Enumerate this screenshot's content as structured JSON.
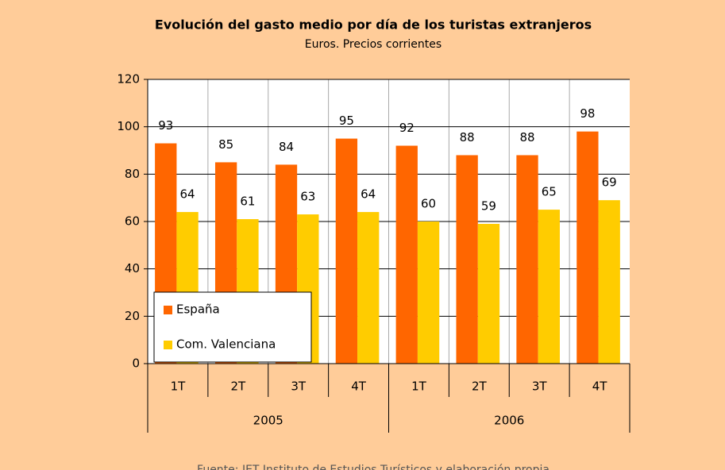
{
  "chart_data": {
    "type": "bar",
    "title": "Evolución del gasto medio por día de los turistas extranjeros",
    "subtitle": "Euros. Precios corrientes",
    "categories": [
      "1T",
      "2T",
      "3T",
      "4T",
      "1T",
      "2T",
      "3T",
      "4T"
    ],
    "group_labels": [
      "2005",
      "2006"
    ],
    "series": [
      {
        "name": "España",
        "color": "#ff6600",
        "values": [
          93,
          85,
          84,
          95,
          92,
          88,
          88,
          98
        ]
      },
      {
        "name": "Com. Valenciana",
        "color": "#ffcc00",
        "values": [
          64,
          61,
          63,
          64,
          60,
          59,
          65,
          69
        ]
      }
    ],
    "ylim": [
      0,
      120
    ],
    "yticks": [
      0,
      20,
      40,
      60,
      80,
      100,
      120
    ],
    "grid": true,
    "legend": "lower left",
    "note": "Fuente: IET Instituto de Estudios Turísticos y elaboración propia"
  }
}
